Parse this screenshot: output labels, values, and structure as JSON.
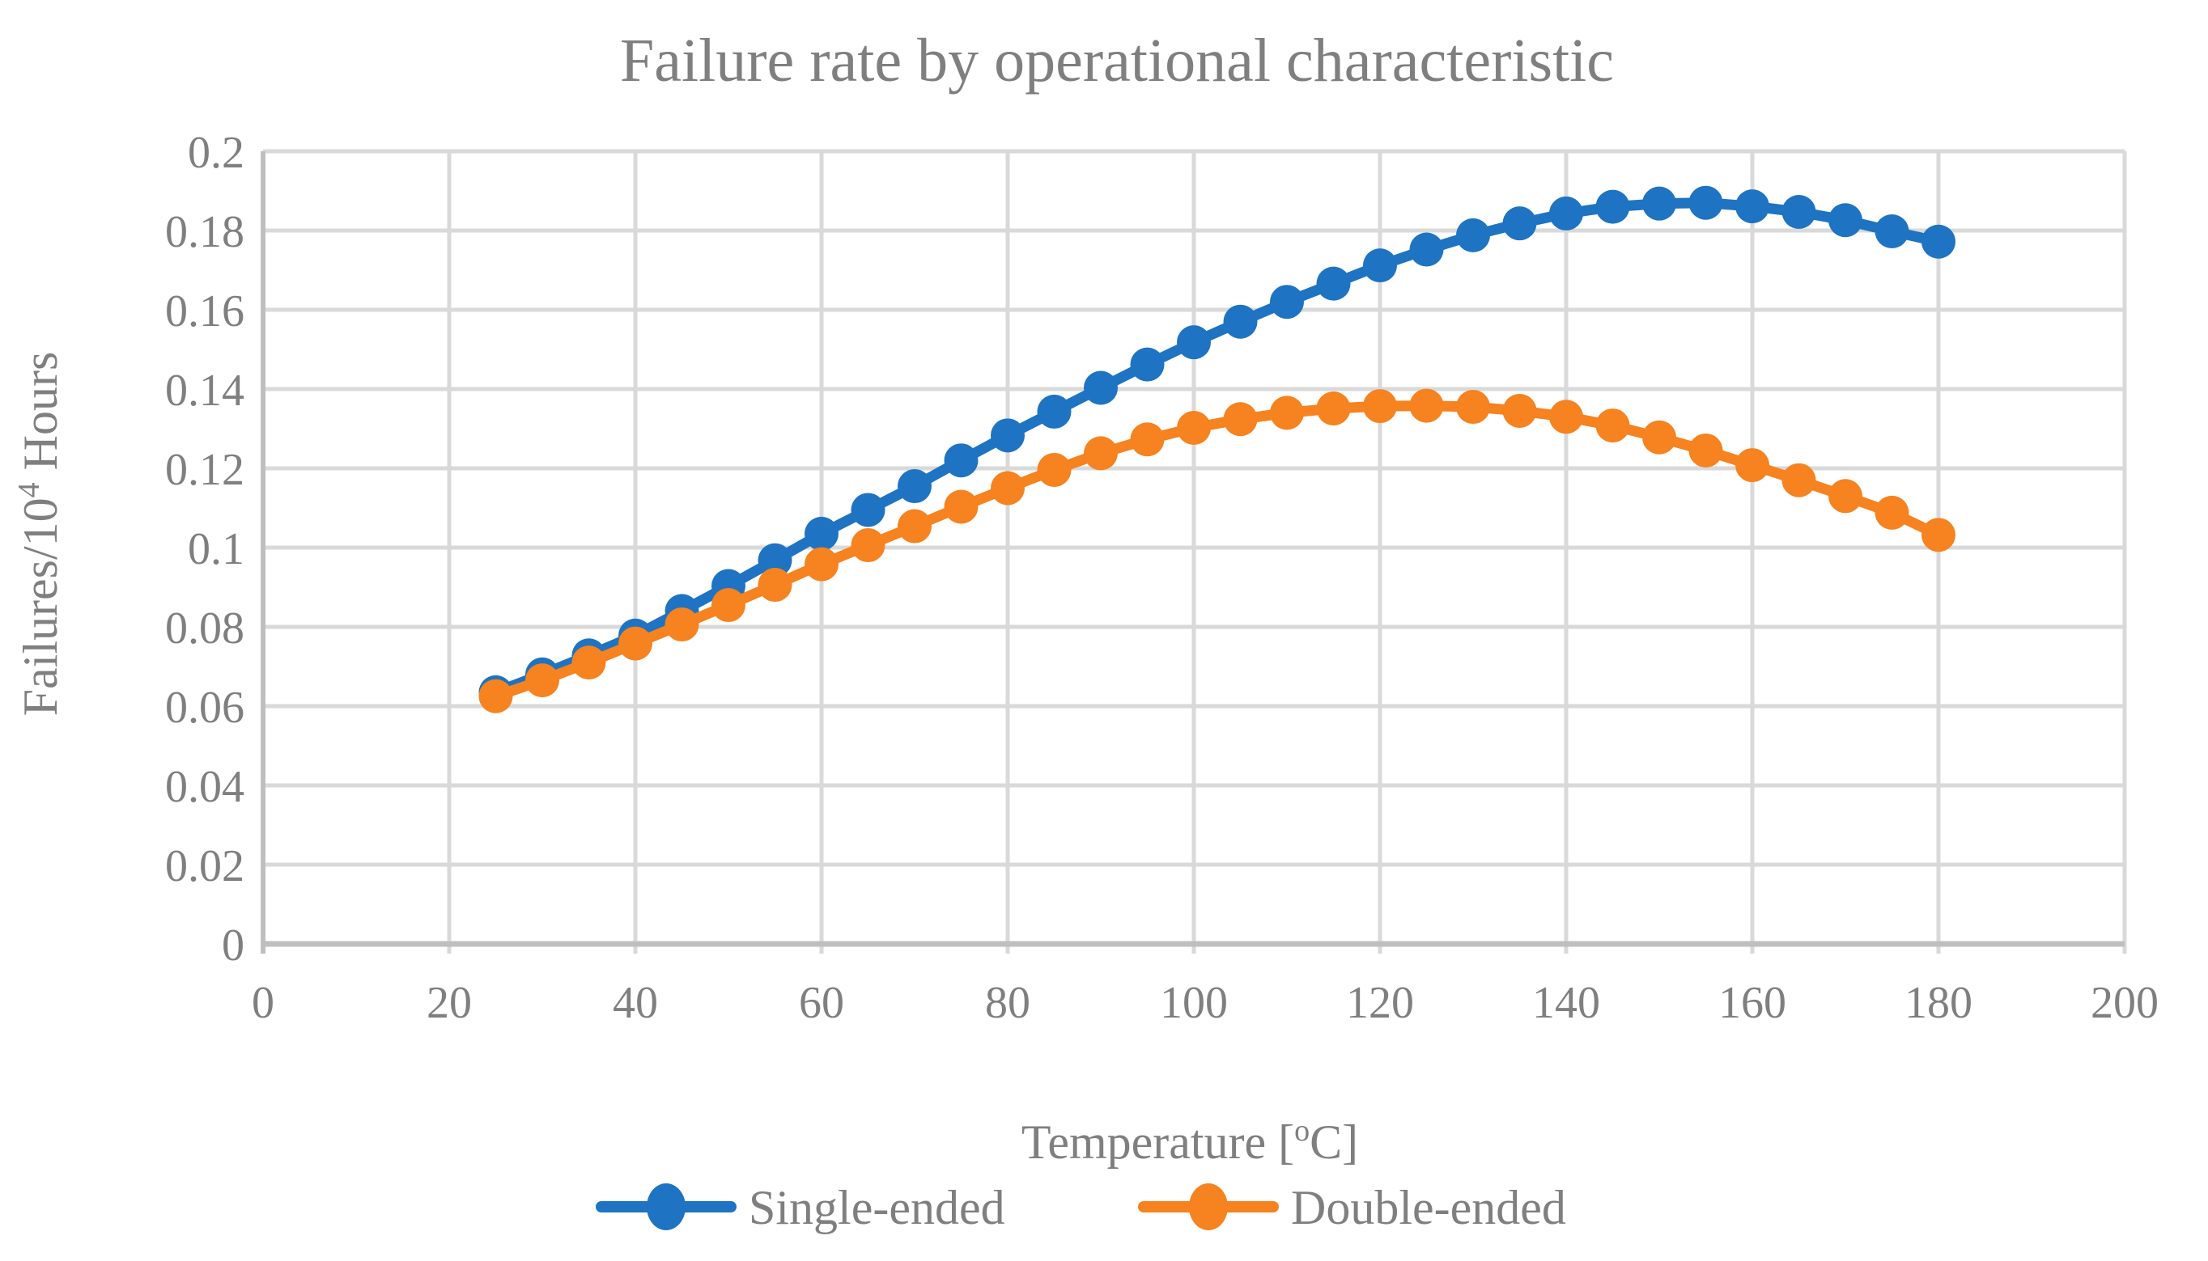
{
  "chart_data": {
    "type": "line",
    "title": "Failure rate by operational characteristic",
    "xlabel_parts": {
      "pre": "Temperature [",
      "sup": "o",
      "post": "C]"
    },
    "ylabel_parts": {
      "pre": "Failures/10",
      "sup": "4",
      "post": " Hours"
    },
    "xlim": [
      0,
      200
    ],
    "ylim": [
      0,
      0.2
    ],
    "x_ticks": [
      0,
      20,
      40,
      60,
      80,
      100,
      120,
      140,
      160,
      180,
      200
    ],
    "y_ticks": [
      "0",
      "0.02",
      "0.04",
      "0.06",
      "0.08",
      "0.1",
      "0.12",
      "0.14",
      "0.16",
      "0.18",
      "0.2"
    ],
    "grid": "both",
    "legend_position": "bottom",
    "x": [
      25,
      30,
      35,
      40,
      45,
      50,
      55,
      60,
      65,
      70,
      75,
      80,
      85,
      90,
      95,
      100,
      105,
      110,
      115,
      120,
      125,
      130,
      135,
      140,
      145,
      150,
      155,
      160,
      165,
      170,
      175,
      180
    ],
    "series": [
      {
        "name": "Single-ended",
        "color": "#1E73C2",
        "values": [
          0.0635,
          0.068,
          0.0728,
          0.0778,
          0.084,
          0.0903,
          0.0968,
          0.1035,
          0.1095,
          0.1155,
          0.122,
          0.1283,
          0.1343,
          0.1403,
          0.1462,
          0.1518,
          0.157,
          0.162,
          0.1666,
          0.1712,
          0.1752,
          0.1788,
          0.1818,
          0.1843,
          0.186,
          0.1868,
          0.187,
          0.1861,
          0.1847,
          0.1826,
          0.1798,
          0.1772
        ]
      },
      {
        "name": "Double-ended",
        "color": "#F68220",
        "values": [
          0.0625,
          0.0665,
          0.071,
          0.0758,
          0.0806,
          0.0855,
          0.0906,
          0.0958,
          0.1006,
          0.1054,
          0.1103,
          0.115,
          0.1196,
          0.1238,
          0.1273,
          0.1302,
          0.1324,
          0.134,
          0.1351,
          0.1357,
          0.1358,
          0.1355,
          0.1345,
          0.133,
          0.1308,
          0.1278,
          0.1245,
          0.1208,
          0.117,
          0.113,
          0.1088,
          0.1032
        ]
      }
    ],
    "style": {
      "grid_color": "#D9D9D9",
      "axis_color": "#BFBFBF",
      "text_color": "#7F7F7F",
      "background": "#FFFFFF"
    }
  }
}
